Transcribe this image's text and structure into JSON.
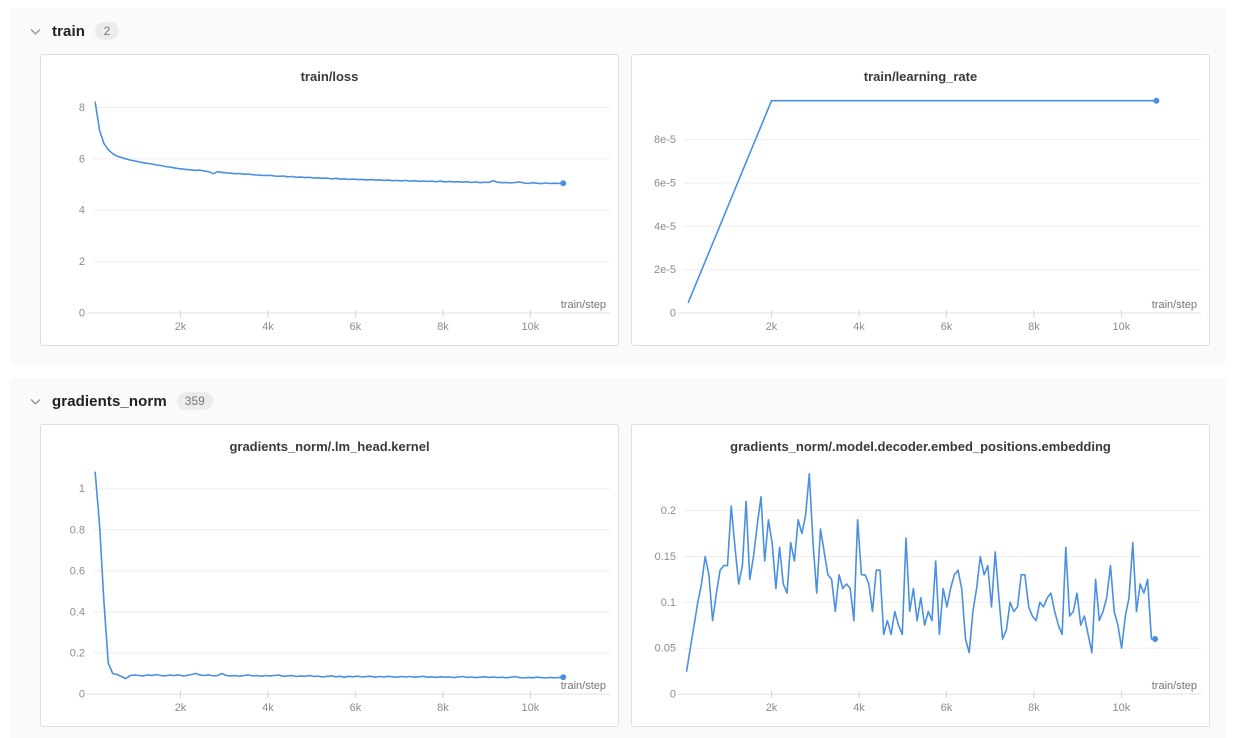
{
  "page": {
    "background": "#ffffff",
    "section_background": "#fafafa",
    "accent_blue": "#4a90e2",
    "grid_color": "#ededed",
    "axis_color": "#e2e2e2",
    "tick_text_color": "#8c8c8c"
  },
  "icons": {
    "section_collapse": "chevron-down"
  },
  "sections": [
    {
      "label": "train",
      "count": "2"
    },
    {
      "label": "gradients_norm",
      "count": "359"
    }
  ],
  "chart_data": [
    {
      "type": "line",
      "title": "train/loss",
      "xlabel": "train/step",
      "xlim": [
        0,
        11500
      ],
      "ylim": [
        0,
        8.6
      ],
      "xticks": [
        2000,
        4000,
        6000,
        8000,
        10000
      ],
      "xtick_labels": [
        "2k",
        "4k",
        "6k",
        "8k",
        "10k"
      ],
      "yticks": [
        0,
        2,
        4,
        6,
        8
      ],
      "ytick_labels": [
        "0",
        "2",
        "4",
        "6",
        "8"
      ],
      "grid": true,
      "end_marker": true,
      "x_start": 50,
      "x_step": 100,
      "y": [
        8.2,
        7.1,
        6.6,
        6.35,
        6.2,
        6.1,
        6.05,
        6.0,
        5.95,
        5.92,
        5.88,
        5.85,
        5.82,
        5.8,
        5.76,
        5.74,
        5.7,
        5.68,
        5.65,
        5.62,
        5.6,
        5.58,
        5.57,
        5.55,
        5.56,
        5.52,
        5.5,
        5.42,
        5.5,
        5.47,
        5.45,
        5.44,
        5.42,
        5.43,
        5.4,
        5.41,
        5.38,
        5.37,
        5.36,
        5.35,
        5.36,
        5.33,
        5.32,
        5.33,
        5.3,
        5.31,
        5.28,
        5.29,
        5.27,
        5.28,
        5.25,
        5.26,
        5.24,
        5.25,
        5.22,
        5.24,
        5.21,
        5.22,
        5.2,
        5.21,
        5.19,
        5.2,
        5.18,
        5.19,
        5.17,
        5.18,
        5.16,
        5.17,
        5.15,
        5.16,
        5.14,
        5.16,
        5.13,
        5.15,
        5.12,
        5.14,
        5.12,
        5.13,
        5.11,
        5.13,
        5.1,
        5.12,
        5.1,
        5.11,
        5.09,
        5.11,
        5.08,
        5.1,
        5.07,
        5.09,
        5.08,
        5.15,
        5.09,
        5.07,
        5.08,
        5.06,
        5.08,
        5.1,
        5.06,
        5.04,
        5.07,
        5.05,
        5.03,
        5.06,
        5.04,
        5.05,
        5.04,
        5.05
      ]
    },
    {
      "type": "line",
      "title": "train/learning_rate",
      "xlabel": "train/step",
      "xlim": [
        0,
        11500
      ],
      "ylim": [
        0,
        0.000102
      ],
      "xticks": [
        2000,
        4000,
        6000,
        8000,
        10000
      ],
      "xtick_labels": [
        "2k",
        "4k",
        "6k",
        "8k",
        "10k"
      ],
      "yticks": [
        0,
        2e-05,
        4e-05,
        6e-05,
        8e-05
      ],
      "ytick_labels": [
        "0",
        "2e-5",
        "4e-5",
        "6e-5",
        "8e-5"
      ],
      "grid": true,
      "end_marker": true,
      "x": [
        100,
        2000,
        10800
      ],
      "y": [
        5e-06,
        9.8e-05,
        9.8e-05
      ]
    },
    {
      "type": "line",
      "title": "gradients_norm/.lm_head.kernel",
      "xlabel": "train/step",
      "xlim": [
        0,
        11500
      ],
      "ylim": [
        0,
        1.13
      ],
      "xticks": [
        2000,
        4000,
        6000,
        8000,
        10000
      ],
      "xtick_labels": [
        "2k",
        "4k",
        "6k",
        "8k",
        "10k"
      ],
      "yticks": [
        0,
        0.2,
        0.4,
        0.6,
        0.8,
        1
      ],
      "ytick_labels": [
        "0",
        "0.2",
        "0.4",
        "0.6",
        "0.8",
        "1"
      ],
      "grid": true,
      "end_marker": true,
      "x_start": 50,
      "x_step": 100,
      "y": [
        1.08,
        0.82,
        0.45,
        0.15,
        0.1,
        0.095,
        0.085,
        0.075,
        0.09,
        0.092,
        0.09,
        0.088,
        0.093,
        0.09,
        0.095,
        0.09,
        0.088,
        0.092,
        0.09,
        0.093,
        0.088,
        0.09,
        0.095,
        0.1,
        0.092,
        0.09,
        0.093,
        0.088,
        0.09,
        0.1,
        0.09,
        0.088,
        0.09,
        0.086,
        0.09,
        0.093,
        0.088,
        0.09,
        0.086,
        0.09,
        0.088,
        0.09,
        0.092,
        0.086,
        0.088,
        0.09,
        0.085,
        0.088,
        0.086,
        0.09,
        0.085,
        0.087,
        0.083,
        0.086,
        0.088,
        0.084,
        0.086,
        0.082,
        0.086,
        0.084,
        0.087,
        0.083,
        0.085,
        0.086,
        0.082,
        0.085,
        0.083,
        0.086,
        0.084,
        0.082,
        0.085,
        0.083,
        0.085,
        0.082,
        0.084,
        0.086,
        0.082,
        0.084,
        0.081,
        0.084,
        0.082,
        0.084,
        0.08,
        0.083,
        0.085,
        0.081,
        0.083,
        0.08,
        0.082,
        0.084,
        0.081,
        0.083,
        0.08,
        0.082,
        0.079,
        0.082,
        0.085,
        0.08,
        0.078,
        0.081,
        0.079,
        0.082,
        0.08,
        0.078,
        0.081,
        0.079,
        0.08,
        0.082
      ]
    },
    {
      "type": "line",
      "title": "gradients_norm/.model.decoder.embed_positions.embedding",
      "xlabel": "train/step",
      "xlim": [
        0,
        11500
      ],
      "ylim": [
        0,
        0.253
      ],
      "xticks": [
        2000,
        4000,
        6000,
        8000,
        10000
      ],
      "xtick_labels": [
        "2k",
        "4k",
        "6k",
        "8k",
        "10k"
      ],
      "yticks": [
        0,
        0.05,
        0.1,
        0.15,
        0.2
      ],
      "ytick_labels": [
        "0",
        "0.05",
        "0.1",
        "0.15",
        "0.2"
      ],
      "grid": true,
      "end_marker": true,
      "x_start": 60,
      "x_step": 85,
      "y": [
        0.025,
        0.05,
        0.075,
        0.1,
        0.12,
        0.15,
        0.13,
        0.08,
        0.11,
        0.135,
        0.14,
        0.14,
        0.205,
        0.16,
        0.12,
        0.14,
        0.21,
        0.125,
        0.15,
        0.185,
        0.215,
        0.145,
        0.19,
        0.165,
        0.115,
        0.16,
        0.12,
        0.11,
        0.165,
        0.145,
        0.19,
        0.175,
        0.195,
        0.24,
        0.165,
        0.11,
        0.18,
        0.155,
        0.13,
        0.125,
        0.09,
        0.13,
        0.115,
        0.12,
        0.115,
        0.08,
        0.19,
        0.13,
        0.13,
        0.12,
        0.09,
        0.135,
        0.135,
        0.065,
        0.08,
        0.065,
        0.09,
        0.075,
        0.065,
        0.17,
        0.09,
        0.115,
        0.08,
        0.105,
        0.075,
        0.09,
        0.08,
        0.145,
        0.065,
        0.115,
        0.095,
        0.115,
        0.13,
        0.135,
        0.115,
        0.06,
        0.045,
        0.09,
        0.115,
        0.15,
        0.13,
        0.14,
        0.095,
        0.155,
        0.105,
        0.06,
        0.07,
        0.1,
        0.09,
        0.095,
        0.13,
        0.13,
        0.095,
        0.085,
        0.08,
        0.1,
        0.095,
        0.105,
        0.11,
        0.09,
        0.075,
        0.065,
        0.16,
        0.085,
        0.09,
        0.11,
        0.075,
        0.085,
        0.065,
        0.045,
        0.125,
        0.08,
        0.09,
        0.105,
        0.14,
        0.09,
        0.075,
        0.05,
        0.085,
        0.105,
        0.165,
        0.09,
        0.12,
        0.11,
        0.125,
        0.06,
        0.06
      ]
    }
  ]
}
